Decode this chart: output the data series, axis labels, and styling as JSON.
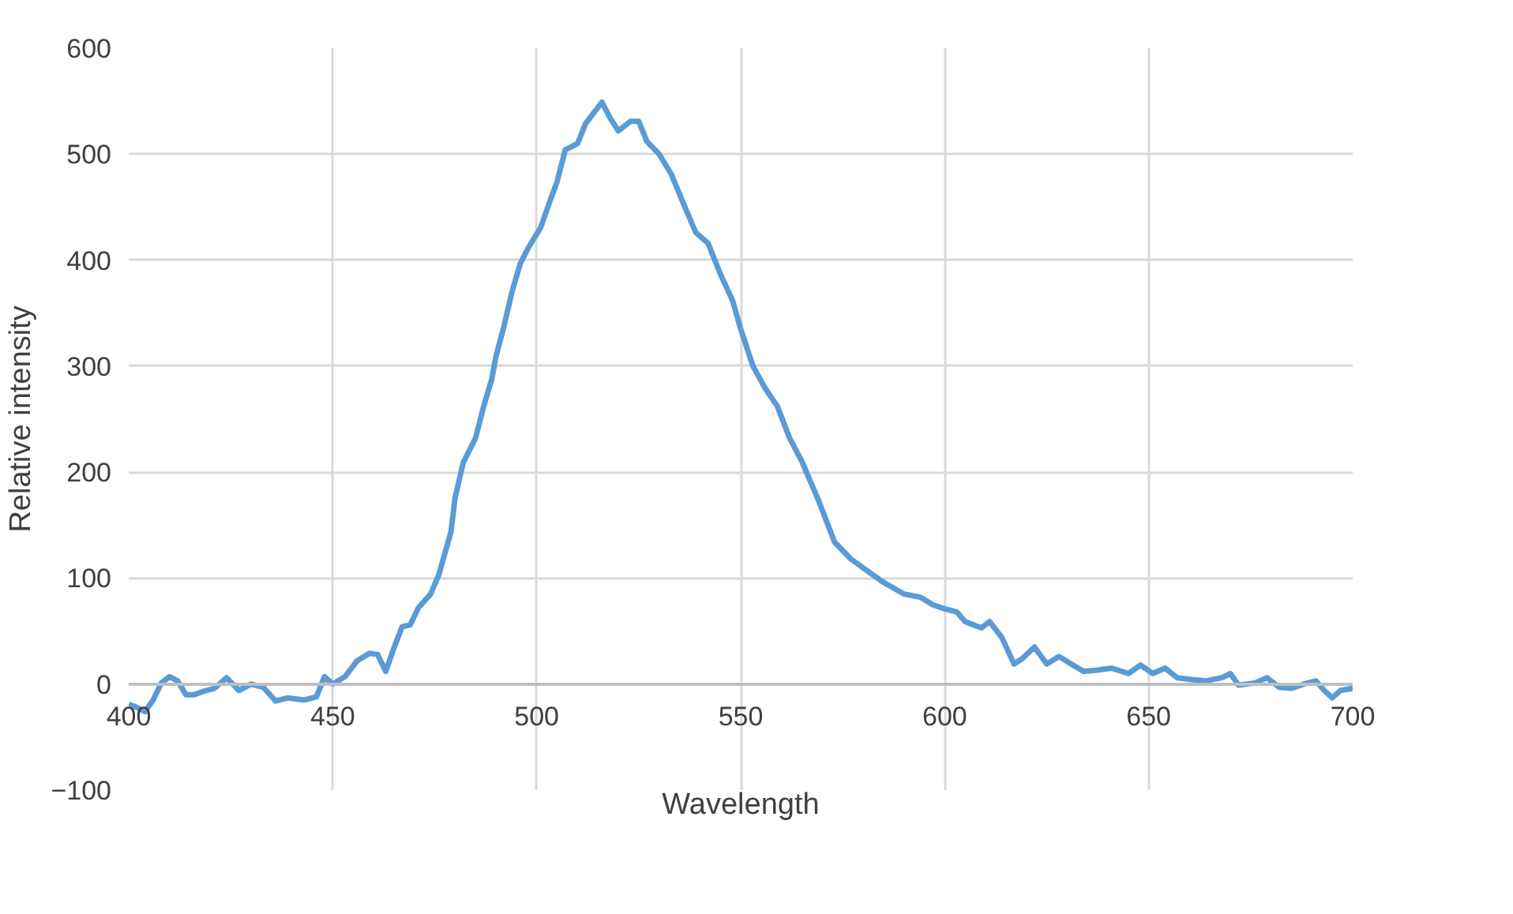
{
  "chart_data": {
    "type": "line",
    "xlabel": "Wavelength",
    "ylabel": "Relative intensity",
    "x": [
      400,
      402,
      404,
      406,
      408,
      410,
      412,
      414,
      416,
      419,
      421,
      424,
      427,
      430,
      433,
      436,
      439,
      443,
      446,
      448,
      450,
      453,
      456,
      459,
      461,
      463,
      465,
      467,
      469,
      471,
      474,
      476,
      479,
      480,
      482,
      485,
      487,
      489,
      490,
      492,
      494,
      496,
      498,
      501,
      503,
      505,
      507,
      510,
      512,
      516,
      518,
      520,
      523,
      525,
      527,
      530,
      533,
      536,
      539,
      542,
      545,
      548,
      550,
      553,
      556,
      559,
      562,
      565,
      569,
      573,
      577,
      581,
      585,
      590,
      594,
      597,
      600,
      603,
      605,
      609,
      611,
      614,
      617,
      619,
      622,
      625,
      628,
      631,
      634,
      637,
      641,
      645,
      648,
      651,
      654,
      657,
      661,
      664,
      668,
      670,
      672,
      676,
      679,
      682,
      685,
      688,
      691,
      693,
      695,
      697,
      700
    ],
    "series": [
      {
        "color": "#5b9bd5",
        "values": [
          -19,
          -22,
          -26,
          -15,
          1,
          7,
          3,
          -10,
          -10,
          -6,
          -4,
          6,
          -6,
          0,
          -3,
          -16,
          -13,
          -15,
          -12,
          7,
          0,
          7,
          22,
          29,
          28,
          12,
          34,
          54,
          56,
          72,
          85,
          103,
          144,
          176,
          209,
          232,
          262,
          288,
          309,
          338,
          371,
          397,
          412,
          431,
          453,
          474,
          504,
          510,
          529,
          549,
          534,
          522,
          531,
          531,
          512,
          500,
          481,
          453,
          426,
          416,
          387,
          362,
          335,
          300,
          279,
          262,
          232,
          210,
          174,
          134,
          118,
          107,
          96,
          85,
          82,
          75,
          71,
          68,
          59,
          53,
          59,
          44,
          19,
          24,
          35,
          19,
          26,
          19,
          12,
          13,
          15,
          10,
          18,
          10,
          15,
          6,
          4,
          3,
          6,
          10,
          -1,
          1,
          6,
          -3,
          -4,
          0,
          3,
          -6,
          -13,
          -6,
          -4
        ]
      }
    ],
    "xlim": [
      400,
      700
    ],
    "ylim": [
      -100,
      600
    ],
    "xticks": [
      400,
      450,
      500,
      550,
      600,
      650,
      700
    ],
    "yticks": [
      -100,
      0,
      100,
      200,
      300,
      400,
      500,
      600
    ],
    "grid": true,
    "marker": "none",
    "line_style": "solid"
  }
}
